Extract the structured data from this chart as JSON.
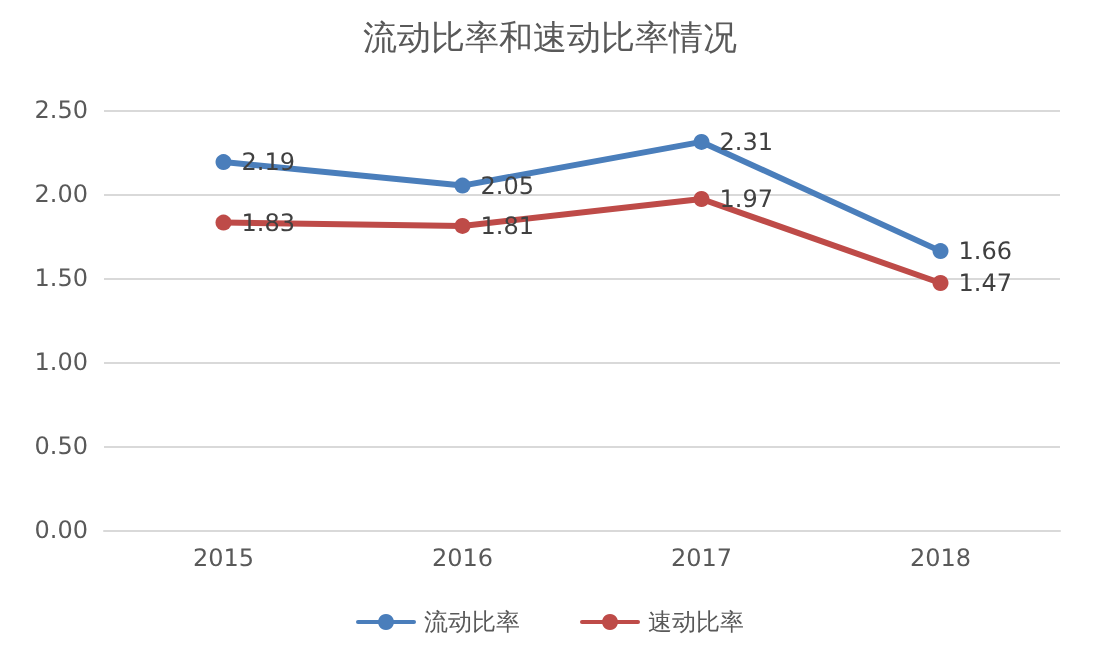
{
  "chart_data": {
    "type": "line",
    "title": "流动比率和速动比率情况",
    "categories": [
      "2015",
      "2016",
      "2017",
      "2018"
    ],
    "series": [
      {
        "name": "流动比率",
        "color": "#4a7ebb",
        "values": [
          2.19,
          2.05,
          2.31,
          1.66
        ]
      },
      {
        "name": "速动比率",
        "color": "#be4b48",
        "values": [
          1.83,
          1.81,
          1.97,
          1.47
        ]
      }
    ],
    "ylim": [
      0,
      2.5
    ],
    "yticks": [
      {
        "value": 0,
        "label": "0.00"
      },
      {
        "value": 0.5,
        "label": "0.50"
      },
      {
        "value": 1,
        "label": "1.00"
      },
      {
        "value": 1.5,
        "label": "1.50"
      },
      {
        "value": 2,
        "label": "2.00"
      },
      {
        "value": 2.5,
        "label": "2.50"
      }
    ],
    "grid": "y",
    "legend": "bottom",
    "marker": "circle",
    "line_style": "solid",
    "data_labels": true
  }
}
